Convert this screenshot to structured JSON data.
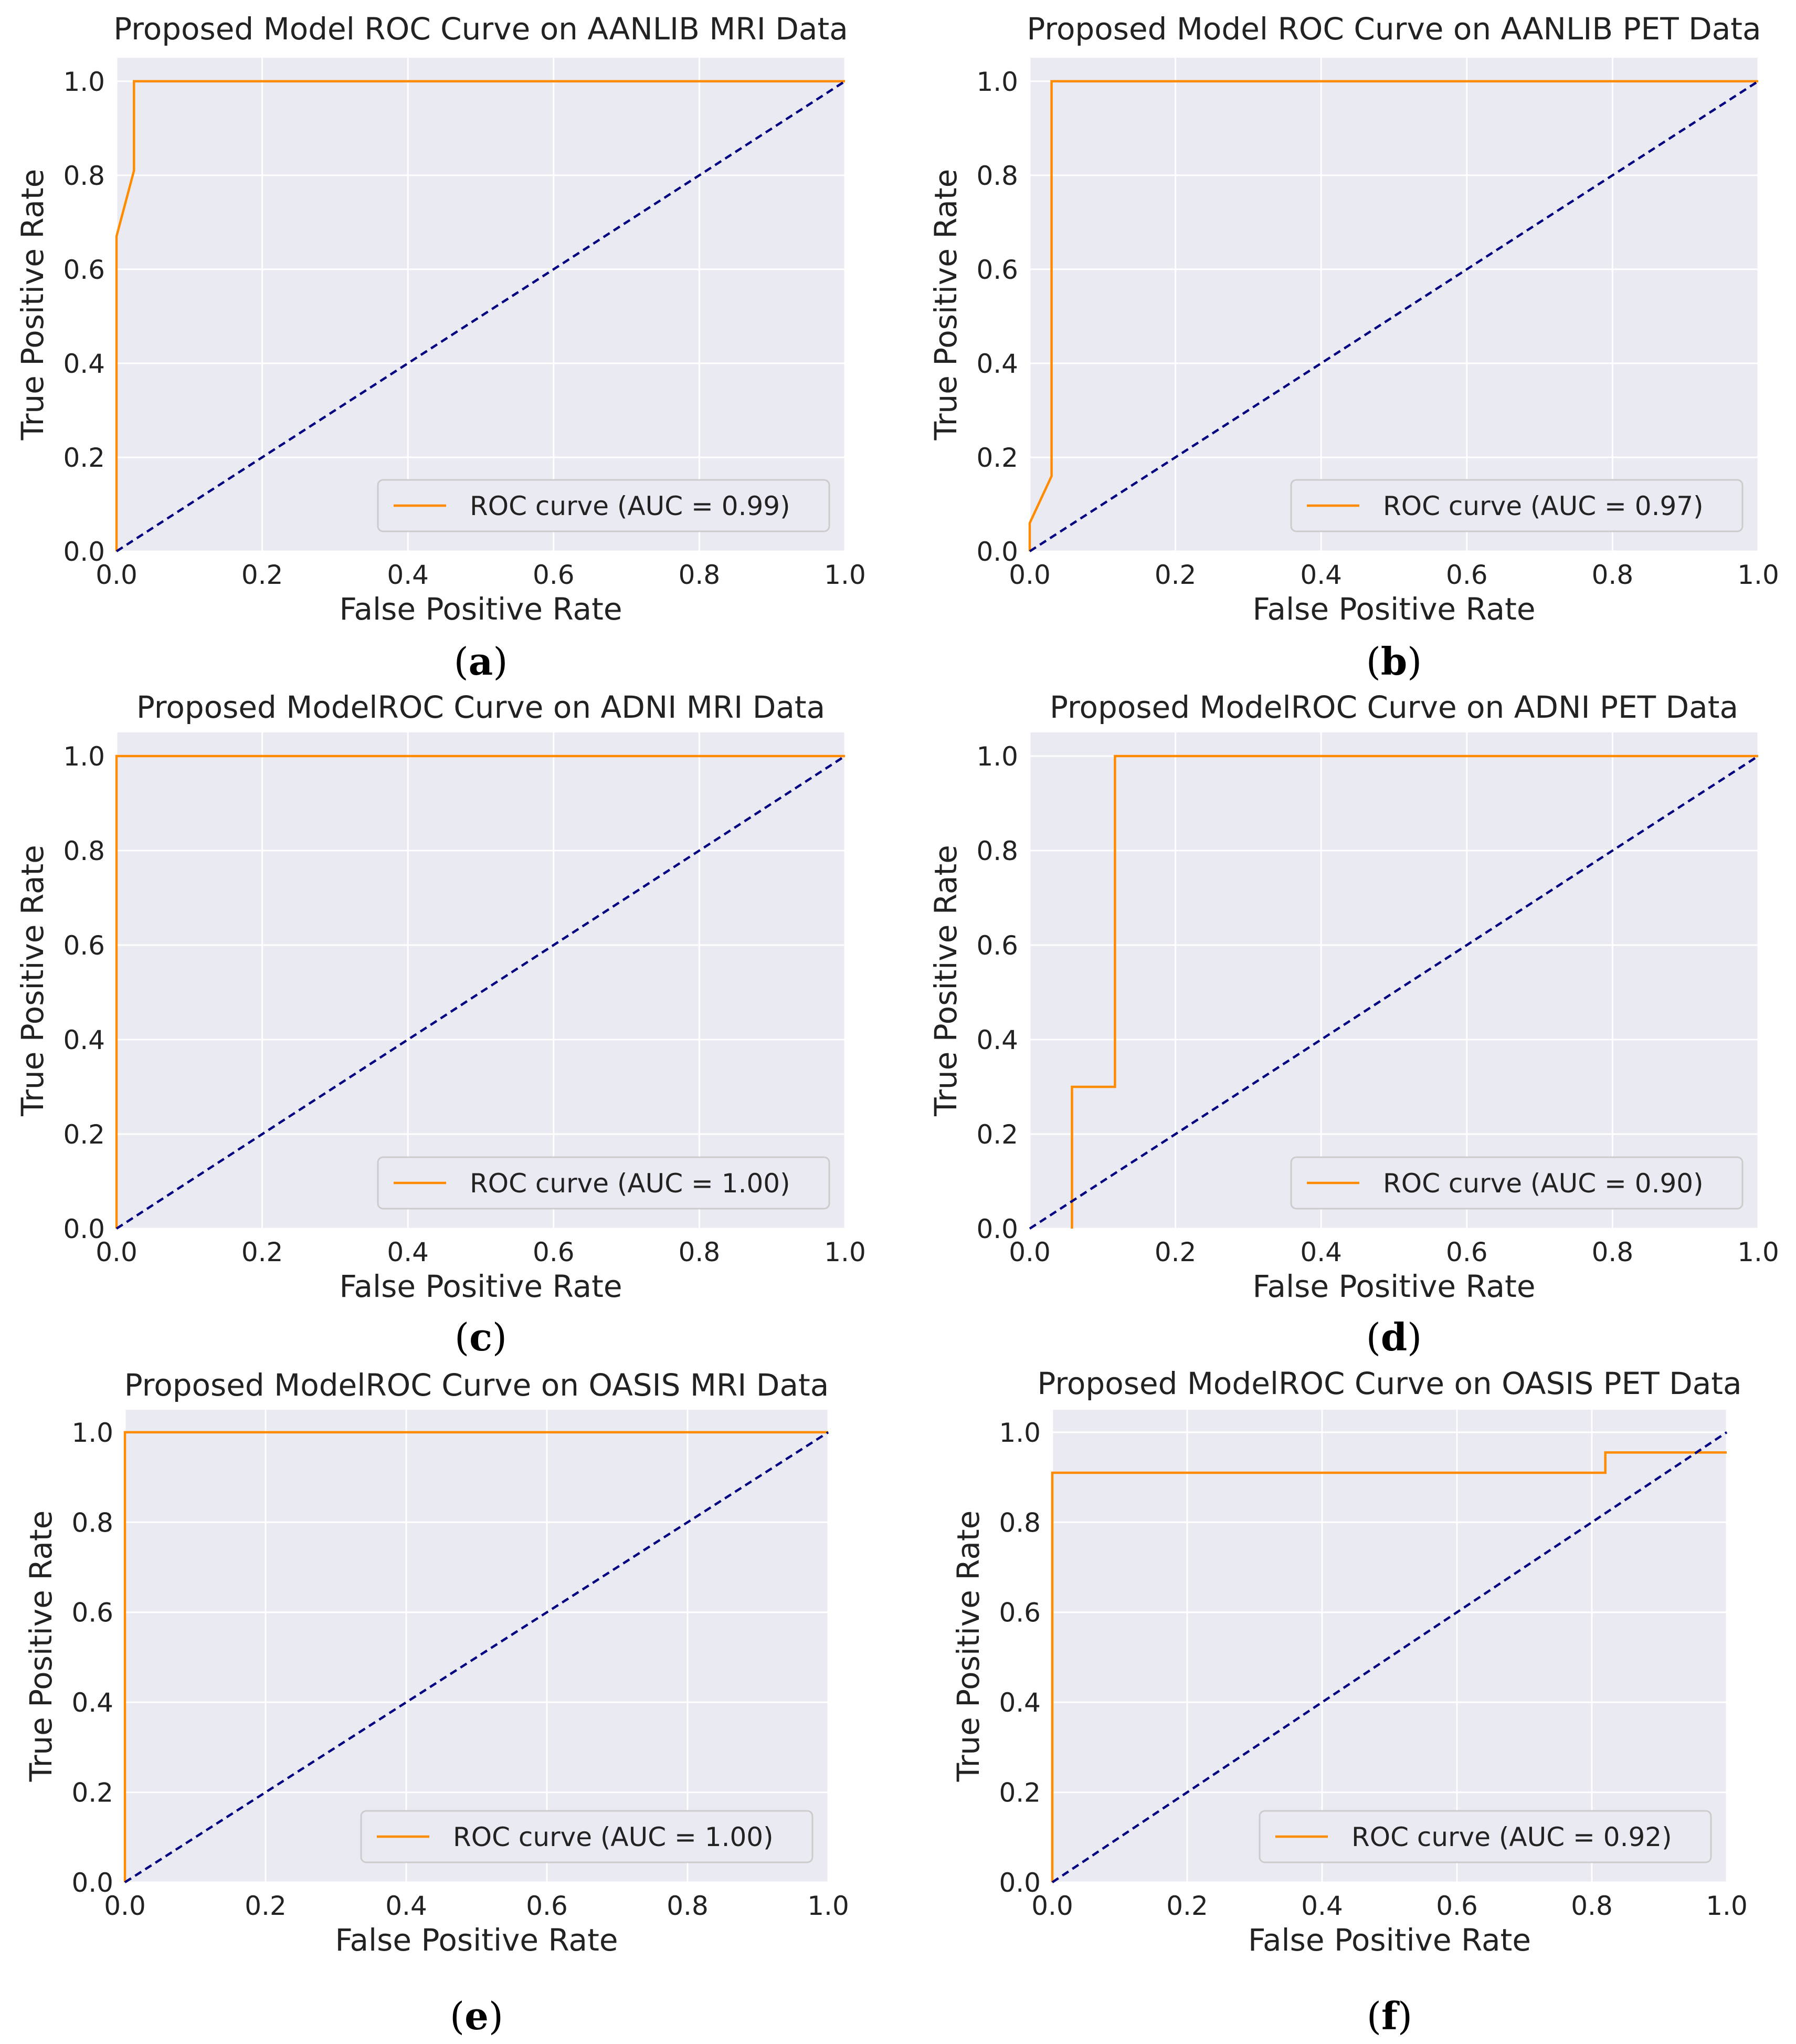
{
  "chart_data": [
    {
      "type": "line",
      "panel": "a",
      "title": "Proposed Model ROC Curve on AANLIB MRI Data",
      "xlabel": "False Positive Rate",
      "ylabel": "True Positive Rate",
      "xlim": [
        0,
        1
      ],
      "ylim": [
        0,
        1.05
      ],
      "xticks": [
        "0.0",
        "0.2",
        "0.4",
        "0.6",
        "0.8",
        "1.0"
      ],
      "yticks": [
        "0.0",
        "0.2",
        "0.4",
        "0.6",
        "0.8",
        "1.0"
      ],
      "legend_position": "lower-right",
      "grid": true,
      "series": [
        {
          "name": "ROC curve (AUC = 0.99)",
          "color": "#ff8c00",
          "style": "solid",
          "x": [
            0.0,
            0.0,
            0.024,
            0.024,
            1.0
          ],
          "y": [
            0.0,
            0.67,
            0.81,
            1.0,
            1.0
          ]
        },
        {
          "name": "chance",
          "color": "#000080",
          "style": "dashed",
          "x": [
            0,
            1
          ],
          "y": [
            0,
            1
          ]
        }
      ],
      "caption": "a"
    },
    {
      "type": "line",
      "panel": "b",
      "title": "Proposed Model ROC Curve on AANLIB PET Data",
      "xlabel": "False Positive Rate",
      "ylabel": "True Positive Rate",
      "xlim": [
        0,
        1
      ],
      "ylim": [
        0,
        1.05
      ],
      "xticks": [
        "0.0",
        "0.2",
        "0.4",
        "0.6",
        "0.8",
        "1.0"
      ],
      "yticks": [
        "0.0",
        "0.2",
        "0.4",
        "0.6",
        "0.8",
        "1.0"
      ],
      "legend_position": "lower-right",
      "grid": true,
      "series": [
        {
          "name": "ROC curve (AUC = 0.97)",
          "color": "#ff8c00",
          "style": "solid",
          "x": [
            0.0,
            0.0,
            0.03,
            0.03,
            1.0
          ],
          "y": [
            0.0,
            0.06,
            0.16,
            1.0,
            1.0
          ]
        },
        {
          "name": "chance",
          "color": "#000080",
          "style": "dashed",
          "x": [
            0,
            1
          ],
          "y": [
            0,
            1
          ]
        }
      ],
      "caption": "b"
    },
    {
      "type": "line",
      "panel": "c",
      "title": "Proposed ModelROC Curve on ADNI MRI Data",
      "xlabel": "False Positive Rate",
      "ylabel": "True Positive Rate",
      "xlim": [
        0,
        1
      ],
      "ylim": [
        0,
        1.05
      ],
      "xticks": [
        "0.0",
        "0.2",
        "0.4",
        "0.6",
        "0.8",
        "1.0"
      ],
      "yticks": [
        "0.0",
        "0.2",
        "0.4",
        "0.6",
        "0.8",
        "1.0"
      ],
      "legend_position": "lower-right",
      "grid": true,
      "series": [
        {
          "name": "ROC curve (AUC = 1.00)",
          "color": "#ff8c00",
          "style": "solid",
          "x": [
            0.0,
            0.0,
            1.0
          ],
          "y": [
            0.0,
            1.0,
            1.0
          ]
        },
        {
          "name": "chance",
          "color": "#000080",
          "style": "dashed",
          "x": [
            0,
            1
          ],
          "y": [
            0,
            1
          ]
        }
      ],
      "caption": "c"
    },
    {
      "type": "line",
      "panel": "d",
      "title": "Proposed ModelROC Curve on ADNI PET Data",
      "xlabel": "False Positive Rate",
      "ylabel": "True Positive Rate",
      "xlim": [
        0,
        1
      ],
      "ylim": [
        0,
        1.05
      ],
      "xticks": [
        "0.0",
        "0.2",
        "0.4",
        "0.6",
        "0.8",
        "1.0"
      ],
      "yticks": [
        "0.0",
        "0.2",
        "0.4",
        "0.6",
        "0.8",
        "1.0"
      ],
      "legend_position": "lower-right",
      "grid": true,
      "series": [
        {
          "name": "ROC curve (AUC = 0.90)",
          "color": "#ff8c00",
          "style": "solid",
          "x": [
            0.058,
            0.058,
            0.117,
            0.117,
            1.0
          ],
          "y": [
            0.0,
            0.3,
            0.3,
            1.0,
            1.0
          ]
        },
        {
          "name": "chance",
          "color": "#000080",
          "style": "dashed",
          "x": [
            0,
            1
          ],
          "y": [
            0,
            1
          ]
        }
      ],
      "caption": "d"
    },
    {
      "type": "line",
      "panel": "e",
      "title": "Proposed ModelROC Curve on OASIS MRI Data",
      "xlabel": "False Positive Rate",
      "ylabel": "True Positive Rate",
      "xlim": [
        0,
        1
      ],
      "ylim": [
        0,
        1.05
      ],
      "xticks": [
        "0.0",
        "0.2",
        "0.4",
        "0.6",
        "0.8",
        "1.0"
      ],
      "yticks": [
        "0.0",
        "0.2",
        "0.4",
        "0.6",
        "0.8",
        "1.0"
      ],
      "legend_position": "lower-right",
      "grid": true,
      "series": [
        {
          "name": "ROC curve (AUC = 1.00)",
          "color": "#ff8c00",
          "style": "solid",
          "x": [
            0.0,
            0.0,
            1.0
          ],
          "y": [
            0.0,
            1.0,
            1.0
          ]
        },
        {
          "name": "chance",
          "color": "#000080",
          "style": "dashed",
          "x": [
            0,
            1
          ],
          "y": [
            0,
            1
          ]
        }
      ],
      "caption": "e"
    },
    {
      "type": "line",
      "panel": "f",
      "title": "Proposed ModelROC Curve on OASIS PET Data",
      "xlabel": "False Positive Rate",
      "ylabel": "True Positive Rate",
      "xlim": [
        0,
        1
      ],
      "ylim": [
        0,
        1.05
      ],
      "xticks": [
        "0.0",
        "0.2",
        "0.4",
        "0.6",
        "0.8",
        "1.0"
      ],
      "yticks": [
        "0.0",
        "0.2",
        "0.4",
        "0.6",
        "0.8",
        "1.0"
      ],
      "legend_position": "lower-right",
      "grid": true,
      "series": [
        {
          "name": "ROC curve (AUC = 0.92)",
          "color": "#ff8c00",
          "style": "solid",
          "x": [
            0.0,
            0.0,
            0.82,
            0.82,
            1.0
          ],
          "y": [
            0.0,
            0.91,
            0.91,
            0.955,
            0.955
          ]
        },
        {
          "name": "chance",
          "color": "#000080",
          "style": "dashed",
          "x": [
            0,
            1
          ],
          "y": [
            0,
            1
          ]
        }
      ],
      "caption": "f"
    }
  ],
  "colors": {
    "axes_background": "#eaeaf2",
    "grid": "#ffffff",
    "roc": "#ff8c00",
    "chance": "#000080"
  }
}
